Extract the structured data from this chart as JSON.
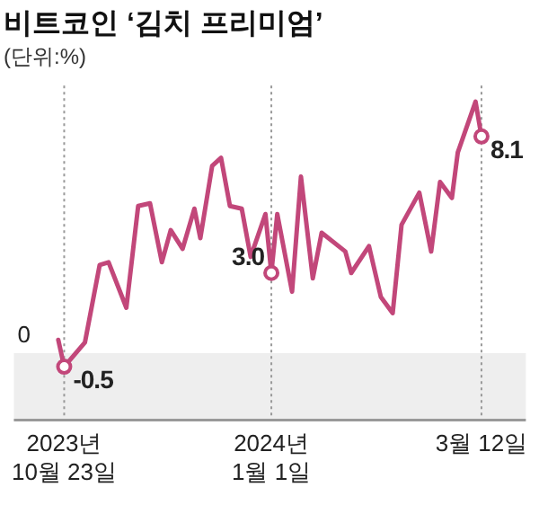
{
  "chart_data": {
    "type": "line",
    "title": "비트코인 ‘김치 프리미엄’",
    "subtitle": "(단위:%)",
    "x": [
      "2023-10-21",
      "2023-10-23",
      "2023-10-30",
      "2023-11-04",
      "2023-11-07",
      "2023-11-13",
      "2023-11-17",
      "2023-11-21",
      "2023-11-25",
      "2023-11-28",
      "2023-12-02",
      "2023-12-06",
      "2023-12-08",
      "2023-12-12",
      "2023-12-15",
      "2023-12-18",
      "2023-12-22",
      "2023-12-25",
      "2023-12-30",
      "2024-01-01",
      "2024-01-03",
      "2024-01-08",
      "2024-01-11",
      "2024-01-15",
      "2024-01-18",
      "2024-01-26",
      "2024-01-28",
      "2024-02-03",
      "2024-02-07",
      "2024-02-11",
      "2024-02-14",
      "2024-02-20",
      "2024-02-24",
      "2024-02-27",
      "2024-03-02",
      "2024-03-04",
      "2024-03-10",
      "2024-03-12"
    ],
    "series": [
      {
        "color": "#c2477a",
        "values": [
          0.5,
          -0.5,
          0.4,
          3.3,
          3.4,
          1.7,
          5.5,
          5.6,
          3.4,
          4.6,
          3.9,
          5.4,
          4.3,
          7.0,
          7.3,
          5.5,
          5.4,
          3.6,
          5.2,
          3.0,
          5.2,
          2.3,
          6.6,
          2.8,
          4.5,
          3.8,
          3.0,
          4.0,
          2.1,
          1.5,
          4.8,
          6.0,
          3.8,
          6.4,
          5.8,
          7.5,
          9.4,
          8.1
        ],
        "value_labels": [
          null,
          "-0.5",
          null,
          null,
          null,
          null,
          null,
          null,
          null,
          null,
          null,
          null,
          null,
          null,
          null,
          null,
          null,
          null,
          null,
          "3.0",
          null,
          null,
          null,
          null,
          null,
          null,
          null,
          null,
          null,
          null,
          null,
          null,
          null,
          null,
          null,
          null,
          null,
          "8.1"
        ]
      }
    ],
    "xlim": [
      "2023-10-06",
      "2024-03-27"
    ],
    "xticks": [
      {
        "value": "2023-10-23",
        "label": "2023년\n10월 23일"
      },
      {
        "value": "2024-01-01",
        "label": "2024년\n1월 1일"
      },
      {
        "value": "2024-03-12",
        "label": "3월 12일"
      }
    ],
    "ylim": [
      -2.5,
      10
    ],
    "annotations": [
      {
        "text": "0",
        "y": 0
      }
    ],
    "bands": [
      {
        "axis": "y",
        "from": -2.5,
        "to": 0,
        "color": "#eeeeee"
      }
    ],
    "ref_lines": [
      {
        "axis": "x",
        "value": "2023-10-23",
        "line_style": "dotted",
        "color": "#999999"
      },
      {
        "axis": "x",
        "value": "2024-01-01",
        "line_style": "dotted",
        "color": "#999999"
      },
      {
        "axis": "x",
        "value": "2024-03-12",
        "line_style": "dotted",
        "color": "#999999"
      }
    ],
    "line_style": "solid",
    "marker": "none",
    "legend": false
  }
}
